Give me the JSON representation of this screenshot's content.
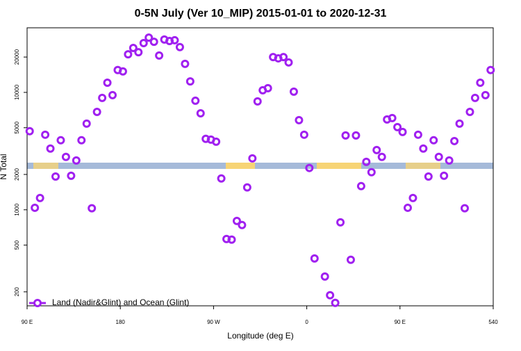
{
  "chart_data": {
    "type": "scatter",
    "title": "0-5N July (Ver 10_MIP)   2015-01-01 to 2020-12-31",
    "x_label": "Longitude (deg E)",
    "y_label": "N Total",
    "log_y": true,
    "legend": "bottom-left",
    "xlim": [
      90,
      540
    ],
    "xticks": [
      {
        "value": 90,
        "label": "90 E"
      },
      180,
      {
        "value": 270,
        "label": "90 W"
      },
      {
        "value": 360,
        "label": "0"
      },
      {
        "value": 450,
        "label": "90 E"
      },
      540
    ],
    "ylim": [
      152,
      35500
    ],
    "yticks": [
      200,
      500,
      1000,
      2000,
      5000,
      10000,
      20000
    ],
    "series": [
      {
        "name": "Land (Nadir&Glint) and Ocean (Glint)",
        "color": "#a020f0",
        "x": [
          92.5,
          97.5,
          102.5,
          107.5,
          112.5,
          117.5,
          122.5,
          127.5,
          132.5,
          137.5,
          142.5,
          147.5,
          152.5,
          157.5,
          162.5,
          167.5,
          172.5,
          177.5,
          182.5,
          187.5,
          192.5,
          197.5,
          202.5,
          207.5,
          212.5,
          217.5,
          222.5,
          227.5,
          232.5,
          237.5,
          242.5,
          247.5,
          252.5,
          257.5,
          262.5,
          267.5,
          272.5,
          277.5,
          282.5,
          287.5,
          292.5,
          297.5,
          302.5,
          307.5,
          312.5,
          317.5,
          322.5,
          327.5,
          332.5,
          337.5,
          342.5,
          347.5,
          352.5,
          357.5,
          362.5,
          367.5,
          377.5,
          382.5,
          387.5,
          392.5,
          397.5,
          402.5,
          407.5,
          412.5,
          417.5,
          422.5,
          427.5,
          432.5,
          437.5,
          442.5,
          447.5,
          452.5,
          457.5,
          462.5,
          467.5,
          472.5,
          477.5,
          482.5,
          487.5,
          492.5,
          497.5,
          502.5,
          507.5,
          512.5,
          517.5,
          522.5,
          527.5,
          532.5,
          537.5
        ],
        "values": [
          4670,
          1040,
          1260,
          4360,
          3320,
          1920,
          3910,
          2820,
          1950,
          2630,
          3910,
          5420,
          1030,
          6820,
          8970,
          12100,
          9470,
          15500,
          15100,
          21100,
          23900,
          22000,
          26300,
          29300,
          27000,
          20600,
          28200,
          27400,
          27800,
          24300,
          17500,
          12400,
          8490,
          6640,
          4020,
          3960,
          3800,
          1850,
          564,
          557,
          804,
          741,
          1550,
          2740,
          8380,
          10420,
          10860,
          20000,
          19500,
          20000,
          18000,
          10140,
          5800,
          4360,
          2270,
          385,
          270,
          187,
          161,
          782,
          4300,
          375,
          4300,
          1590,
          2560,
          2090,
          3230,
          2820,
          5880,
          6040,
          5060,
          4600,
          1040,
          1260,
          4360,
          3320,
          1920,
          3910,
          2820,
          1950,
          2630,
          3850,
          5420,
          1030,
          6820,
          8970,
          12100,
          9470,
          15500
        ]
      }
    ]
  }
}
